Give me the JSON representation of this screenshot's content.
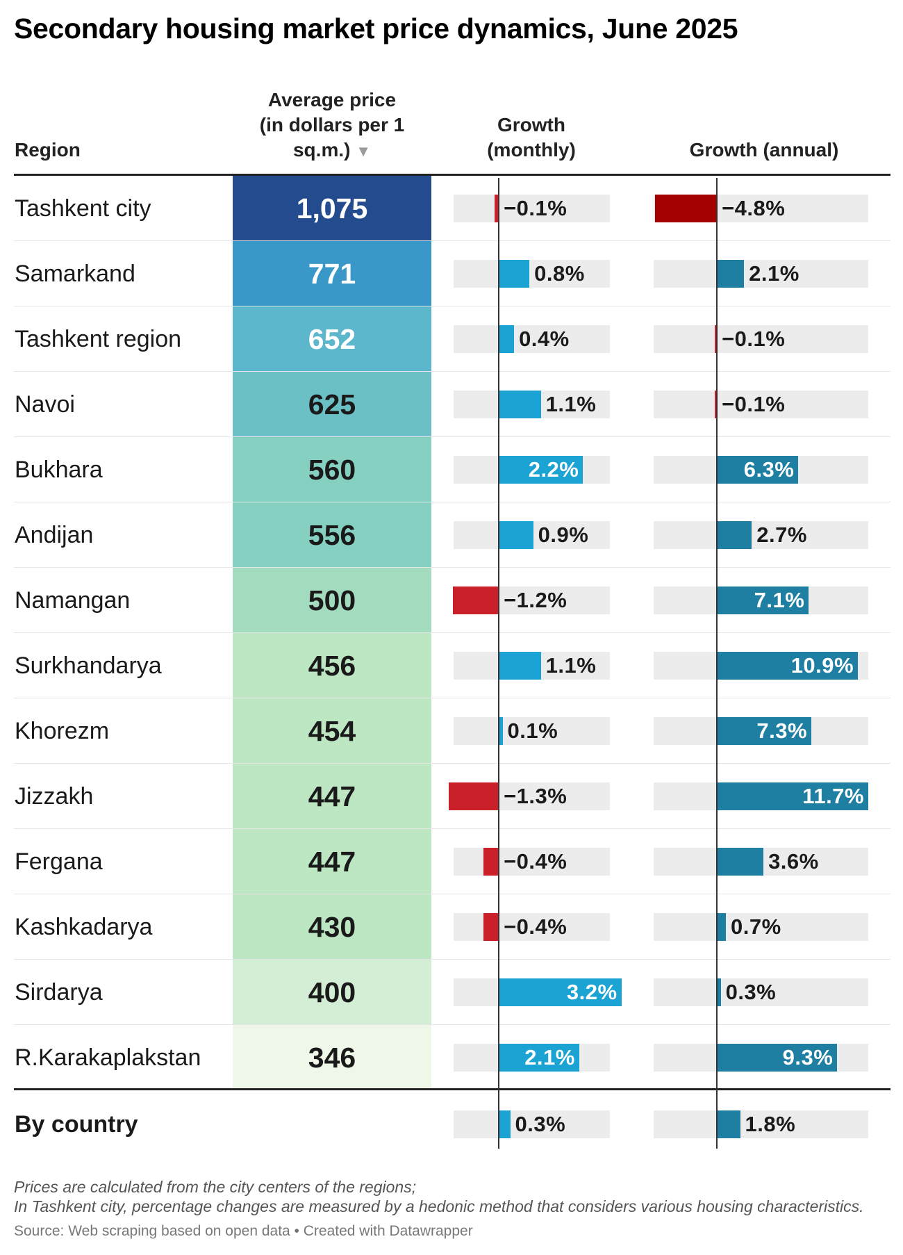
{
  "title": "Secondary housing market price dynamics, June 2025",
  "headers": {
    "region": "Region",
    "price_line1": "Average price",
    "price_line2": "(in dollars per 1",
    "price_line3": "sq.m.)",
    "sort_indicator": "▼",
    "monthly_line1": "Growth",
    "monthly_line2": "(monthly)",
    "annual": "Growth (annual)"
  },
  "colors": {
    "positive_monthly": "#1aa3d3",
    "positive_annual": "#1f7fa3",
    "negative": "#c9202a",
    "negative_dark": "#a30000",
    "track": "#ececec",
    "price_scale": [
      "#234b8e",
      "#3a98c8",
      "#5cb6cc",
      "#6bc0c6",
      "#86d0c2",
      "#a2dbbe",
      "#bde6c2",
      "#d3eed4",
      "#eef7e8"
    ]
  },
  "chart_data": {
    "type": "table",
    "columns": [
      "Region",
      "Average price (in dollars per 1 sq.m.)",
      "Growth (monthly)",
      "Growth (annual)"
    ],
    "monthly_range": [
      -1.3,
      3.2
    ],
    "annual_range": [
      -4.8,
      11.7
    ],
    "rows": [
      {
        "region": "Tashkent city",
        "price": 1075,
        "price_label": "1,075",
        "monthly": -0.1,
        "monthly_label": "−0.1%",
        "annual": -4.8,
        "annual_label": "−4.8%"
      },
      {
        "region": "Samarkand",
        "price": 771,
        "price_label": "771",
        "monthly": 0.8,
        "monthly_label": "0.8%",
        "annual": 2.1,
        "annual_label": "2.1%"
      },
      {
        "region": "Tashkent region",
        "price": 652,
        "price_label": "652",
        "monthly": 0.4,
        "monthly_label": "0.4%",
        "annual": -0.1,
        "annual_label": "−0.1%"
      },
      {
        "region": "Navoi",
        "price": 625,
        "price_label": "625",
        "monthly": 1.1,
        "monthly_label": "1.1%",
        "annual": -0.1,
        "annual_label": "−0.1%"
      },
      {
        "region": "Bukhara",
        "price": 560,
        "price_label": "560",
        "monthly": 2.2,
        "monthly_label": "2.2%",
        "annual": 6.3,
        "annual_label": "6.3%"
      },
      {
        "region": "Andijan",
        "price": 556,
        "price_label": "556",
        "monthly": 0.9,
        "monthly_label": "0.9%",
        "annual": 2.7,
        "annual_label": "2.7%"
      },
      {
        "region": "Namangan",
        "price": 500,
        "price_label": "500",
        "monthly": -1.2,
        "monthly_label": "−1.2%",
        "annual": 7.1,
        "annual_label": "7.1%"
      },
      {
        "region": "Surkhandarya",
        "price": 456,
        "price_label": "456",
        "monthly": 1.1,
        "monthly_label": "1.1%",
        "annual": 10.9,
        "annual_label": "10.9%"
      },
      {
        "region": "Khorezm",
        "price": 454,
        "price_label": "454",
        "monthly": 0.1,
        "monthly_label": "0.1%",
        "annual": 7.3,
        "annual_label": "7.3%"
      },
      {
        "region": "Jizzakh",
        "price": 447,
        "price_label": "447",
        "monthly": -1.3,
        "monthly_label": "−1.3%",
        "annual": 11.7,
        "annual_label": "11.7%"
      },
      {
        "region": "Fergana",
        "price": 447,
        "price_label": "447",
        "monthly": -0.4,
        "monthly_label": "−0.4%",
        "annual": 3.6,
        "annual_label": "3.6%"
      },
      {
        "region": "Kashkadarya",
        "price": 430,
        "price_label": "430",
        "monthly": -0.4,
        "monthly_label": "−0.4%",
        "annual": 0.7,
        "annual_label": "0.7%"
      },
      {
        "region": "Sirdarya",
        "price": 400,
        "price_label": "400",
        "monthly": 3.2,
        "monthly_label": "3.2%",
        "annual": 0.3,
        "annual_label": "0.3%"
      },
      {
        "region": "R.Karakaplakstan",
        "price": 346,
        "price_label": "346",
        "monthly": 2.1,
        "monthly_label": "2.1%",
        "annual": 9.3,
        "annual_label": "9.3%"
      }
    ],
    "total": {
      "region": "By country",
      "monthly": 0.3,
      "monthly_label": "0.3%",
      "annual": 1.8,
      "annual_label": "1.8%"
    }
  },
  "notes": {
    "line1": "Prices are calculated from the city centers of the regions;",
    "line2": "In Tashkent city, percentage changes are measured by a hedonic method that considers various housing characteristics."
  },
  "source": "Source: Web scraping based on open data • Created with Datawrapper"
}
